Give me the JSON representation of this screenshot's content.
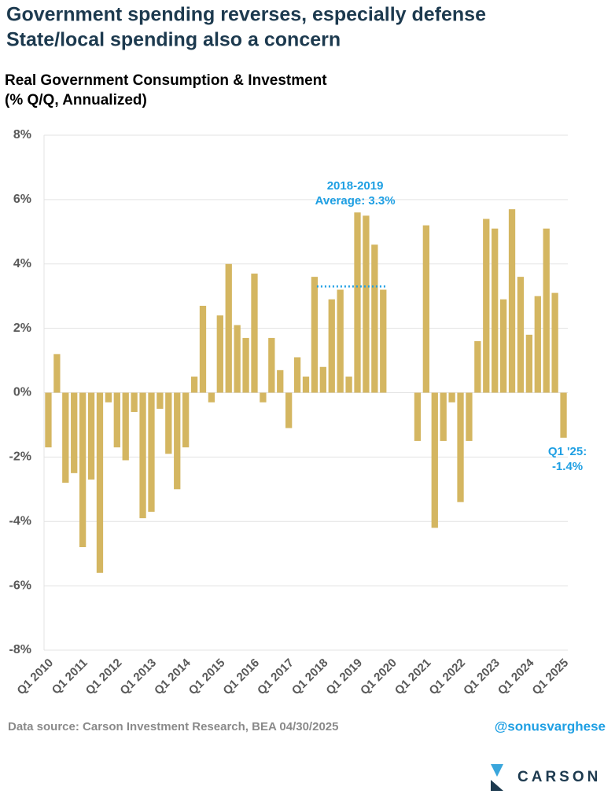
{
  "chart_data": {
    "type": "bar",
    "title_lines": [
      "Government spending reverses, especially defense",
      "State/local spending also a concern"
    ],
    "subtitle_lines": [
      "Real Government Consumption & Investment",
      "(% Q/Q, Annualized)"
    ],
    "categories": [
      "Q1 2010",
      null,
      null,
      null,
      "Q1 2011",
      null,
      null,
      null,
      "Q1 2012",
      null,
      null,
      null,
      "Q1 2013",
      null,
      null,
      null,
      "Q1 2014",
      null,
      null,
      null,
      "Q1 2015",
      null,
      null,
      null,
      "Q1 2016",
      null,
      null,
      null,
      "Q1 2017",
      null,
      null,
      null,
      "Q1 2018",
      null,
      null,
      null,
      "Q1 2019",
      null,
      null,
      null,
      "Q1 2020",
      null,
      null,
      null,
      "Q1 2021",
      null,
      null,
      null,
      "Q1 2022",
      null,
      null,
      null,
      "Q1 2023",
      null,
      null,
      null,
      "Q1 2024",
      null,
      null,
      null,
      "Q1 2025"
    ],
    "values": [
      -1.7,
      1.2,
      -2.8,
      -2.5,
      -4.8,
      -2.7,
      -5.6,
      -0.3,
      -1.7,
      -2.1,
      -0.6,
      -3.9,
      -3.7,
      -0.5,
      -1.9,
      -3.0,
      -1.7,
      0.5,
      2.7,
      -0.3,
      2.4,
      4.0,
      2.1,
      1.7,
      3.7,
      -0.3,
      1.7,
      0.7,
      -1.1,
      1.1,
      0.5,
      3.6,
      0.8,
      2.9,
      3.2,
      0.5,
      5.6,
      5.5,
      4.6,
      3.2,
      null,
      null,
      null,
      -1.5,
      5.2,
      -4.2,
      -1.5,
      -0.3,
      -3.4,
      -1.5,
      1.6,
      5.4,
      5.1,
      2.9,
      5.7,
      3.6,
      1.8,
      3.0,
      5.1,
      3.1,
      -1.4
    ],
    "color": "#d4b661",
    "ylim": [
      -8,
      8
    ],
    "yticks": [
      {
        "value": -8,
        "label": "-8%"
      },
      {
        "value": -6,
        "label": "-6%"
      },
      {
        "value": -4,
        "label": "-4%"
      },
      {
        "value": -2,
        "label": "-2%"
      },
      {
        "value": 0,
        "label": "0%"
      },
      {
        "value": 2,
        "label": "2%"
      },
      {
        "value": 4,
        "label": "4%"
      },
      {
        "value": 6,
        "label": "6%"
      },
      {
        "value": 8,
        "label": "8%"
      }
    ],
    "grid": true,
    "reference_line": {
      "value": 3.3,
      "from": 31,
      "to": 39,
      "color": "#1e9fe3",
      "label_lines": [
        "2018-2019",
        "Average: 3.3%"
      ]
    },
    "last_annotation_lines": [
      "Q1 '25:",
      "-1.4%"
    ],
    "source": "Data source: Carson Investment Research, BEA   04/30/2025",
    "handle": "@sonusvarghese",
    "logo_text": "CARSON"
  }
}
